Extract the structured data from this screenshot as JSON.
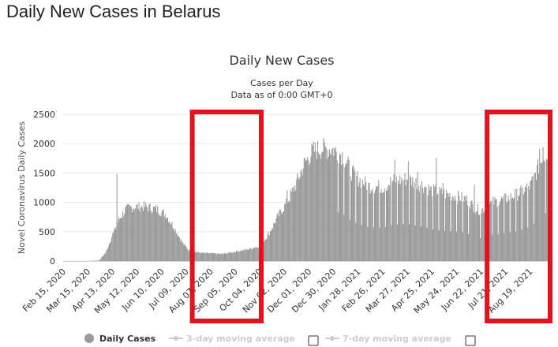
{
  "page": {
    "title": "Daily New Cases in Belarus"
  },
  "colors": {
    "bar": "#9a9a9a",
    "highlight": "#e0141e",
    "legend_dim": "#cccccc"
  },
  "checkboxes": {
    "three_day": false,
    "seven_day": false
  },
  "chart_data": {
    "type": "bar",
    "title": "Daily New Cases",
    "subtitle": "Cases per Day",
    "subtitle2": "Data as of 0:00 GMT+0",
    "ylabel": "Novel Coronavirus Daily Cases",
    "xlabel": "",
    "ylim": [
      0,
      2500
    ],
    "yticks": [
      0,
      500,
      1000,
      1500,
      2000,
      2500
    ],
    "grid": true,
    "legend_position": "bottom",
    "x_start": "Feb 15, 2020",
    "x_end": "Sep 10, 2021",
    "xtick_labels": [
      "Feb 15, 2020",
      "Mar 15, 2020",
      "Apr 13, 2020",
      "May 12, 2020",
      "Jun 10, 2020",
      "Jul 09, 2020",
      "Aug 07, 2020",
      "Sep 05, 2020",
      "Oct 04, 2020",
      "Nov 02, 2020",
      "Dec 01, 2020",
      "Dec 30, 2020",
      "Jan 28, 2021",
      "Feb 26, 2021",
      "Mar 27, 2021",
      "Apr 25, 2021",
      "May 24, 2021",
      "Jun 22, 2021",
      "Jul 21, 2021",
      "Aug 19, 2021"
    ],
    "legend": [
      {
        "name": "Daily Cases",
        "active": true
      },
      {
        "name": "3-day moving average",
        "active": false
      },
      {
        "name": "7-day moving average",
        "active": false
      }
    ],
    "series": [
      {
        "name": "Daily Cases",
        "trend": [
          {
            "x": "Feb 15, 2020",
            "y": 0
          },
          {
            "x": "Mar 15, 2020",
            "y": 0
          },
          {
            "x": "Mar 28, 2020",
            "y": 10
          },
          {
            "x": "Apr 05, 2020",
            "y": 150
          },
          {
            "x": "Apr 13, 2020",
            "y": 450
          },
          {
            "x": "Apr 20, 2020",
            "y": 700
          },
          {
            "x": "Apr 28, 2020",
            "y": 870
          },
          {
            "x": "May 05, 2020",
            "y": 920
          },
          {
            "x": "May 20, 2020",
            "y": 930
          },
          {
            "x": "Jun 05, 2020",
            "y": 880
          },
          {
            "x": "Jun 15, 2020",
            "y": 790
          },
          {
            "x": "Jun 25, 2020",
            "y": 560
          },
          {
            "x": "Jul 05, 2020",
            "y": 300
          },
          {
            "x": "Jul 12, 2020",
            "y": 180
          },
          {
            "x": "Jul 25, 2020",
            "y": 140
          },
          {
            "x": "Aug 20, 2020",
            "y": 120
          },
          {
            "x": "Sep 05, 2020",
            "y": 160
          },
          {
            "x": "Sep 20, 2020",
            "y": 200
          },
          {
            "x": "Oct 04, 2020",
            "y": 260
          },
          {
            "x": "Oct 15, 2020",
            "y": 480
          },
          {
            "x": "Oct 25, 2020",
            "y": 760
          },
          {
            "x": "Nov 05, 2020",
            "y": 1000
          },
          {
            "x": "Nov 15, 2020",
            "y": 1300
          },
          {
            "x": "Nov 25, 2020",
            "y": 1650
          },
          {
            "x": "Dec 05, 2020",
            "y": 1870
          },
          {
            "x": "Dec 15, 2020",
            "y": 1920
          },
          {
            "x": "Dec 30, 2020",
            "y": 1900
          },
          {
            "x": "Jan 10, 2021",
            "y": 1800
          },
          {
            "x": "Jan 20, 2021",
            "y": 1520
          },
          {
            "x": "Jan 28, 2021",
            "y": 1400
          },
          {
            "x": "Feb 10, 2021",
            "y": 1280
          },
          {
            "x": "Feb 26, 2021",
            "y": 1260
          },
          {
            "x": "Mar 10, 2021",
            "y": 1370
          },
          {
            "x": "Mar 27, 2021",
            "y": 1400
          },
          {
            "x": "Apr 10, 2021",
            "y": 1320
          },
          {
            "x": "Apr 25, 2021",
            "y": 1200
          },
          {
            "x": "May 10, 2021",
            "y": 1150
          },
          {
            "x": "May 24, 2021",
            "y": 1100
          },
          {
            "x": "Jun 05, 2021",
            "y": 1050
          },
          {
            "x": "Jun 15, 2021",
            "y": 900
          },
          {
            "x": "Jun 22, 2021",
            "y": 860
          },
          {
            "x": "Jul 05, 2021",
            "y": 1000
          },
          {
            "x": "Jul 21, 2021",
            "y": 1060
          },
          {
            "x": "Aug 05, 2021",
            "y": 1150
          },
          {
            "x": "Aug 19, 2021",
            "y": 1280
          },
          {
            "x": "Aug 30, 2021",
            "y": 1650
          },
          {
            "x": "Sep 10, 2021",
            "y": 1900
          }
        ],
        "spikes": [
          {
            "x": "Apr 18, 2020",
            "y": 1480
          },
          {
            "x": "Nov 05, 2020",
            "y": 1200
          },
          {
            "x": "Dec 20, 2020",
            "y": 1960
          },
          {
            "x": "Mar 12, 2021",
            "y": 1720
          },
          {
            "x": "Mar 28, 2021",
            "y": 1700
          },
          {
            "x": "Apr 08, 2021",
            "y": 1520
          },
          {
            "x": "Apr 30, 2021",
            "y": 1760
          },
          {
            "x": "May 08, 2021",
            "y": 1330
          },
          {
            "x": "Jun 03, 2021",
            "y": 1100
          },
          {
            "x": "Jun 14, 2021",
            "y": 1300
          },
          {
            "x": "Aug 30, 2021",
            "y": 1910
          },
          {
            "x": "Sep 03, 2021",
            "y": 1940
          }
        ]
      }
    ],
    "highlights": [
      {
        "x_from": "Jul 09, 2020",
        "x_to": "Oct 04, 2020",
        "y_from": 0,
        "y_to": 2500
      },
      {
        "x_from": "Jun 22, 2021",
        "x_to": "Sep 10, 2021",
        "y_from": 0,
        "y_to": 2500
      }
    ]
  }
}
